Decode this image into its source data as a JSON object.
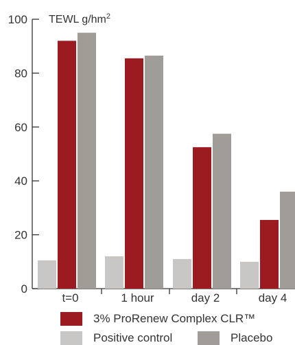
{
  "chart_data": {
    "type": "bar",
    "ylabel": "TEWL g/hm",
    "ylabel_sup": "2",
    "ylim": [
      0,
      100
    ],
    "yticks": [
      0,
      20,
      40,
      60,
      80,
      100
    ],
    "categories": [
      "t=0",
      "1 hour",
      "day 2",
      "day 4"
    ],
    "series": [
      {
        "name": "Positive control",
        "color": "#c8c7c5",
        "values": [
          10.5,
          12,
          11,
          10
        ]
      },
      {
        "name": "3% ProRenew Complex CLR™",
        "color": "#9b1b20",
        "values": [
          92,
          85.5,
          52.5,
          25.5
        ]
      },
      {
        "name": "Placebo",
        "color": "#a09c97",
        "values": [
          95,
          86.5,
          57.5,
          36
        ]
      }
    ],
    "grid": false,
    "legend_position": "bottom"
  }
}
